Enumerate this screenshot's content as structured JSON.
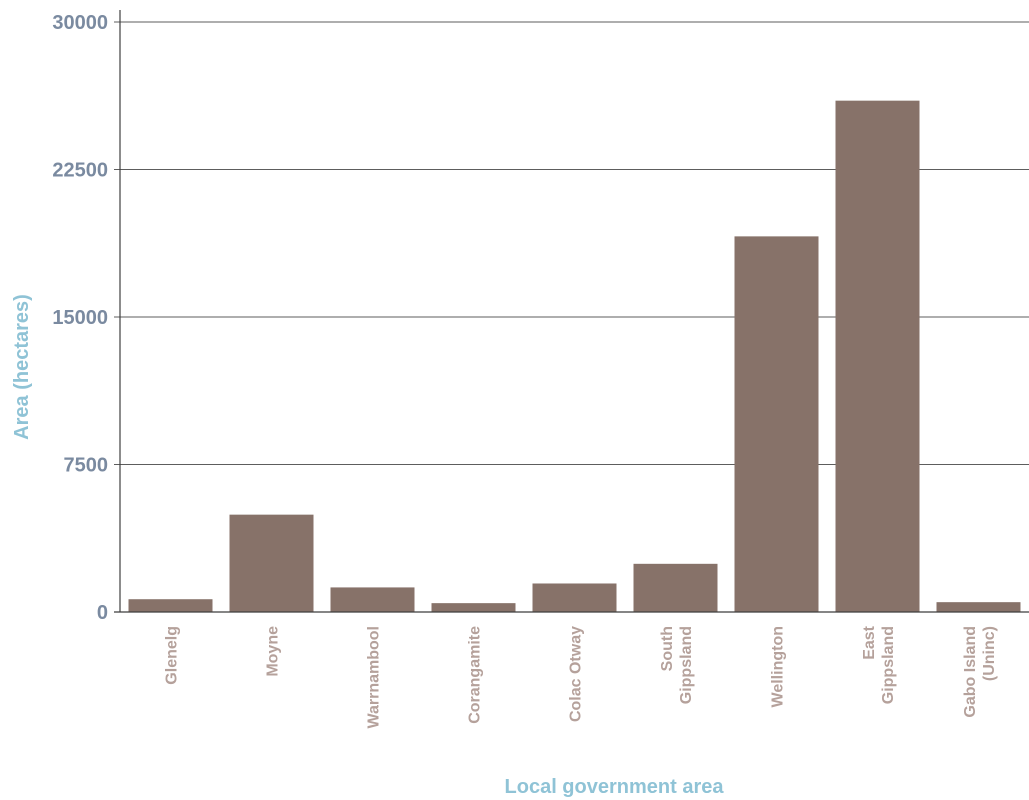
{
  "chart_data": {
    "type": "bar",
    "categories": [
      "Glenelg",
      "Moyne",
      "Warrnambool",
      "Corangamite",
      "Colac Otway",
      "South Gippsland",
      "Wellington",
      "East Gippsland",
      "Gabo Island (Uninc)"
    ],
    "category_lines": [
      [
        "Glenelg"
      ],
      [
        "Moyne"
      ],
      [
        "Warrnambool"
      ],
      [
        "Corangamite"
      ],
      [
        "Colac Otway"
      ],
      [
        "South",
        "Gippsland"
      ],
      [
        "Wellington"
      ],
      [
        "East",
        "Gippsland"
      ],
      [
        "Gabo Island",
        "(Uninc)"
      ]
    ],
    "values": [
      650,
      4950,
      1250,
      450,
      1450,
      2450,
      19100,
      26000,
      500
    ],
    "xlabel": "Local government area",
    "ylabel": "Area (hectares)",
    "ylim": [
      0,
      30000
    ],
    "yticks": [
      0,
      7500,
      15000,
      22500,
      30000
    ],
    "grid": true,
    "colors": {
      "bar": "#877269",
      "tick_y": "#7a8aa0",
      "tick_x": "#b5a19b",
      "axis_title": "#8fc3d6"
    }
  }
}
